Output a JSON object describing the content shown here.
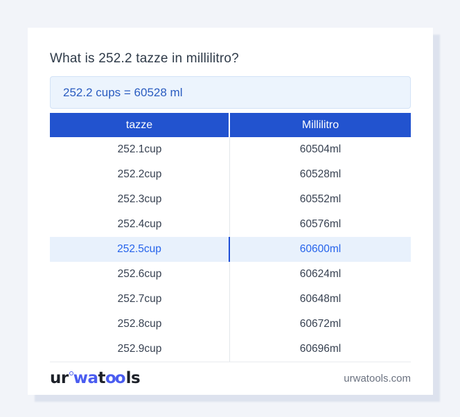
{
  "page": {
    "question": "What is 252.2 tazze in millilitro?"
  },
  "result": {
    "text": "252.2 cups = 60528 ml"
  },
  "table": {
    "headers": [
      "tazze",
      "Millilitro"
    ],
    "rows": [
      {
        "cups": "252.1cup",
        "ml": "60504ml",
        "highlighted": false
      },
      {
        "cups": "252.2cup",
        "ml": "60528ml",
        "highlighted": false
      },
      {
        "cups": "252.3cup",
        "ml": "60552ml",
        "highlighted": false
      },
      {
        "cups": "252.4cup",
        "ml": "60576ml",
        "highlighted": false
      },
      {
        "cups": "252.5cup",
        "ml": "60600ml",
        "highlighted": true
      },
      {
        "cups": "252.6cup",
        "ml": "60624ml",
        "highlighted": false
      },
      {
        "cups": "252.7cup",
        "ml": "60648ml",
        "highlighted": false
      },
      {
        "cups": "252.8cup",
        "ml": "60672ml",
        "highlighted": false
      },
      {
        "cups": "252.9cup",
        "ml": "60696ml",
        "highlighted": false
      }
    ]
  },
  "footer": {
    "logo": {
      "part_ur": "ur",
      "part_wa": "wa",
      "part_t": "t",
      "part_oo": "oo",
      "part_ls": "ls"
    },
    "site": "urwatools.com"
  },
  "colors": {
    "header_blue": "#2253cf",
    "highlight_bg": "#e8f1fc",
    "highlight_text": "#2563eb",
    "result_bg": "#ecf4fd",
    "result_text": "#2a5cc0",
    "page_bg": "#f2f4f9",
    "logo_accent": "#4a5cf0"
  }
}
